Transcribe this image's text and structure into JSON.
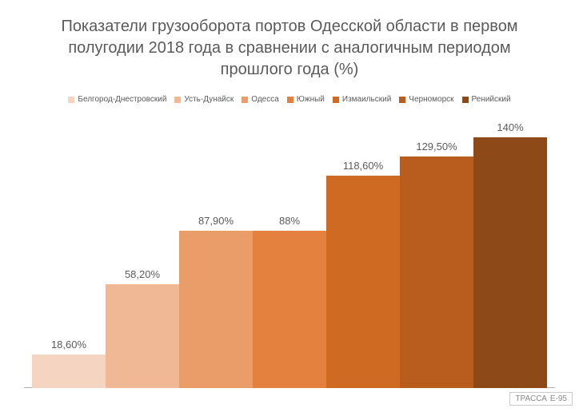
{
  "chart": {
    "type": "bar",
    "title": "Показатели грузооборота портов Одесской области в первом полугодии 2018 года в сравнении с аналогичным периодом прошлого года (%)",
    "title_fontsize": 20,
    "title_color": "#5a5a5a",
    "background_color": "#ffffff",
    "axis_color": "#b0b0b0",
    "label_color": "#5a5a5a",
    "label_fontsize": 13,
    "legend_fontsize": 10,
    "bar_width": 1.0,
    "y_max": 150,
    "series": [
      {
        "name": "Белгород-Днестровский",
        "value": 18.6,
        "label": "18,60%",
        "color": "#f6d4c2"
      },
      {
        "name": "Усть-Дунайск",
        "value": 58.2,
        "label": "58,20%",
        "color": "#f0b895"
      },
      {
        "name": "Одесса",
        "value": 87.9,
        "label": "87,90%",
        "color": "#ea9c69"
      },
      {
        "name": "Южный",
        "value": 88.0,
        "label": "88%",
        "color": "#e4813e"
      },
      {
        "name": "Измаильский",
        "value": 118.6,
        "label": "118,60%",
        "color": "#cf6a23"
      },
      {
        "name": "Черноморск",
        "value": 129.5,
        "label": "129,50%",
        "color": "#b85d1e"
      },
      {
        "name": "Ренийский",
        "value": 140.0,
        "label": "140%",
        "color": "#8e4918"
      }
    ]
  },
  "watermark": {
    "text": "ТРАССА",
    "code": "Е-95"
  }
}
